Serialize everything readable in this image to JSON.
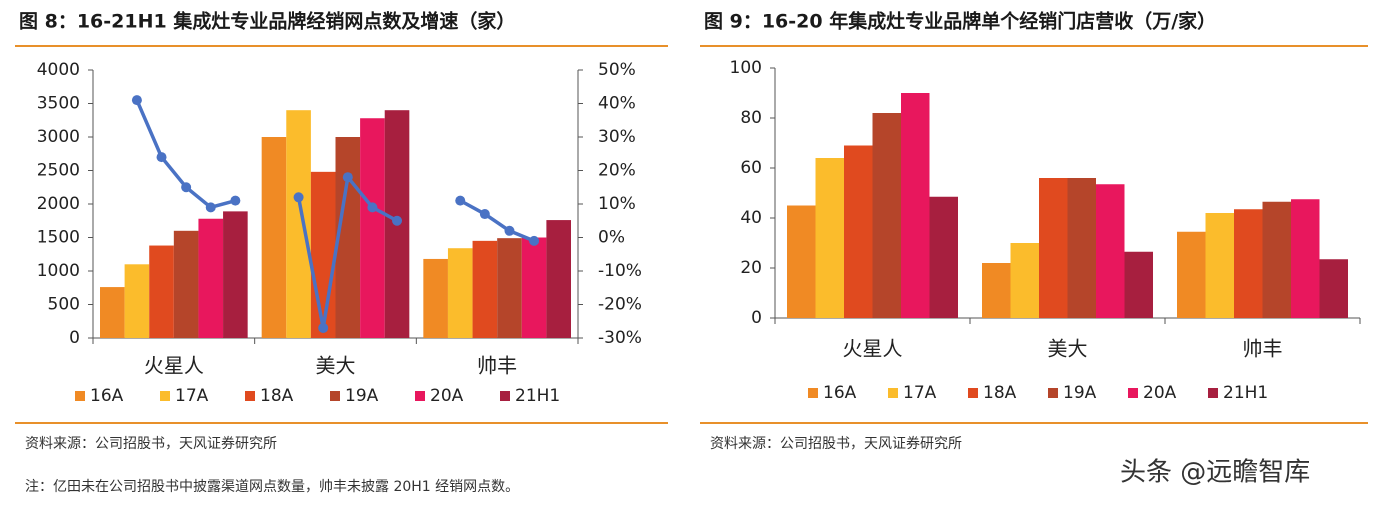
{
  "chart_data": [
    {
      "type": "bar",
      "title": "图 8：16-21H1 集成灶专业品牌经销网点数及增速（家）",
      "categories": [
        "火星人",
        "美大",
        "帅丰"
      ],
      "series": [
        {
          "name": "16A",
          "color": "#f08a24",
          "values": [
            760,
            3000,
            1180
          ]
        },
        {
          "name": "17A",
          "color": "#fbbc2c",
          "values": [
            1100,
            3400,
            1340
          ]
        },
        {
          "name": "18A",
          "color": "#e04a1f",
          "values": [
            1380,
            2480,
            1450
          ]
        },
        {
          "name": "19A",
          "color": "#b5452a",
          "values": [
            1600,
            3000,
            1490
          ]
        },
        {
          "name": "20A",
          "color": "#e8175d",
          "values": [
            1780,
            3280,
            1500
          ]
        },
        {
          "name": "21H1",
          "color": "#a71f3f",
          "values": [
            1890,
            3400,
            1760
          ]
        }
      ],
      "lines": [
        {
          "color": "#4a72c4",
          "axis": "y2",
          "values": [
            null,
            41,
            24,
            15,
            9,
            11
          ]
        },
        {
          "color": "#4a72c4",
          "axis": "y2",
          "values": [
            null,
            12,
            -27,
            18,
            9,
            5
          ]
        },
        {
          "color": "#4a72c4",
          "axis": "y2",
          "values": [
            null,
            11,
            7,
            2,
            -1,
            null
          ]
        }
      ],
      "ylim": [
        0,
        4000
      ],
      "yticks": [
        0,
        500,
        1000,
        1500,
        2000,
        2500,
        3000,
        3500,
        4000
      ],
      "y2lim": [
        -30,
        50
      ],
      "y2ticks": [
        {
          "value": 50,
          "label": "50%"
        },
        {
          "value": 40,
          "label": "40%"
        },
        {
          "value": 30,
          "label": "30%"
        },
        {
          "value": 20,
          "label": "20%"
        },
        {
          "value": 10,
          "label": "10%"
        },
        {
          "value": 0,
          "label": "0%"
        },
        {
          "value": -10,
          "label": "-10%"
        },
        {
          "value": -20,
          "label": "-20%"
        },
        {
          "value": -30,
          "label": "-30%"
        }
      ],
      "source": "资料来源：公司招股书，天风证券研究所",
      "note": "注：亿田未在公司招股书中披露渠道网点数量，帅丰未披露 20H1 经销网点数。"
    },
    {
      "type": "bar",
      "title": "图 9：16-20 年集成灶专业品牌单个经销门店营收（万/家）",
      "categories": [
        "火星人",
        "美大",
        "帅丰"
      ],
      "series": [
        {
          "name": "16A",
          "color": "#f08a24",
          "values": [
            45,
            22,
            34.5
          ]
        },
        {
          "name": "17A",
          "color": "#fbbc2c",
          "values": [
            64,
            30,
            42
          ]
        },
        {
          "name": "18A",
          "color": "#e04a1f",
          "values": [
            69,
            56,
            43.5
          ]
        },
        {
          "name": "19A",
          "color": "#b5452a",
          "values": [
            82,
            56,
            46.5
          ]
        },
        {
          "name": "20A",
          "color": "#e8175d",
          "values": [
            90,
            53.5,
            47.5
          ]
        },
        {
          "name": "21H1",
          "color": "#a71f3f",
          "values": [
            48.5,
            26.5,
            23.5
          ]
        }
      ],
      "ylim": [
        0,
        100
      ],
      "yticks": [
        0,
        20,
        40,
        60,
        80,
        100
      ],
      "source": "资料来源：公司招股书，天风证券研究所"
    }
  ],
  "watermark": "头条 @远瞻智库"
}
